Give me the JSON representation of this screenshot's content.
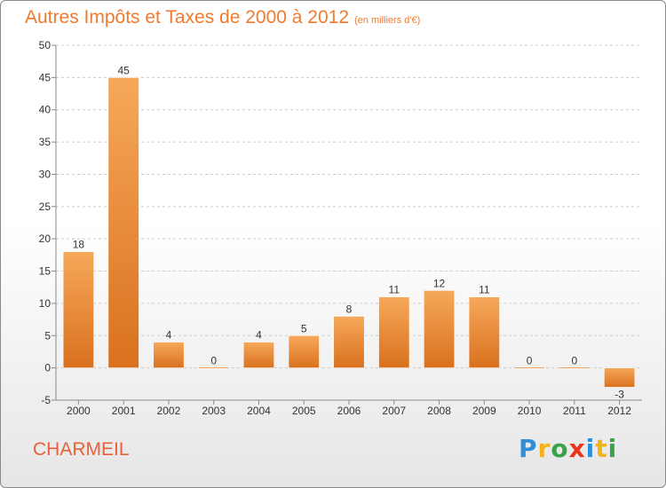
{
  "title": "Autres Impôts et Taxes de 2000 à 2012",
  "subtitle": "(en milliers d'€)",
  "place_name": "CHARMEIL",
  "logo": {
    "letters": [
      "P",
      "r",
      "o",
      "x",
      "i",
      "t",
      "i"
    ],
    "colors": [
      "#2f8fd8",
      "#f2b21a",
      "#3aa34a",
      "#e8361c",
      "#2f8fd8",
      "#f2b21a",
      "#3aa34a"
    ]
  },
  "colors": {
    "bar_top": "#f6a85a",
    "bar_bottom": "#d9711e",
    "title": "#f07a2e",
    "grid": "#cccccc",
    "axis": "#8a8a8a"
  },
  "chart_data": {
    "type": "bar",
    "categories": [
      "2000",
      "2001",
      "2002",
      "2003",
      "2004",
      "2005",
      "2006",
      "2007",
      "2008",
      "2009",
      "2010",
      "2011",
      "2012"
    ],
    "values": [
      18,
      45,
      4,
      0,
      4,
      5,
      8,
      11,
      12,
      11,
      0,
      0,
      -3
    ],
    "data_labels": [
      "18",
      "45",
      "4",
      "0",
      "4",
      "5",
      "8",
      "11",
      "12",
      "11",
      "0",
      "0",
      "-3"
    ],
    "yticks": [
      -5,
      0,
      5,
      10,
      15,
      20,
      25,
      30,
      35,
      40,
      45,
      50
    ],
    "ylim": [
      -5,
      50
    ],
    "grid": true,
    "legend": "none"
  }
}
